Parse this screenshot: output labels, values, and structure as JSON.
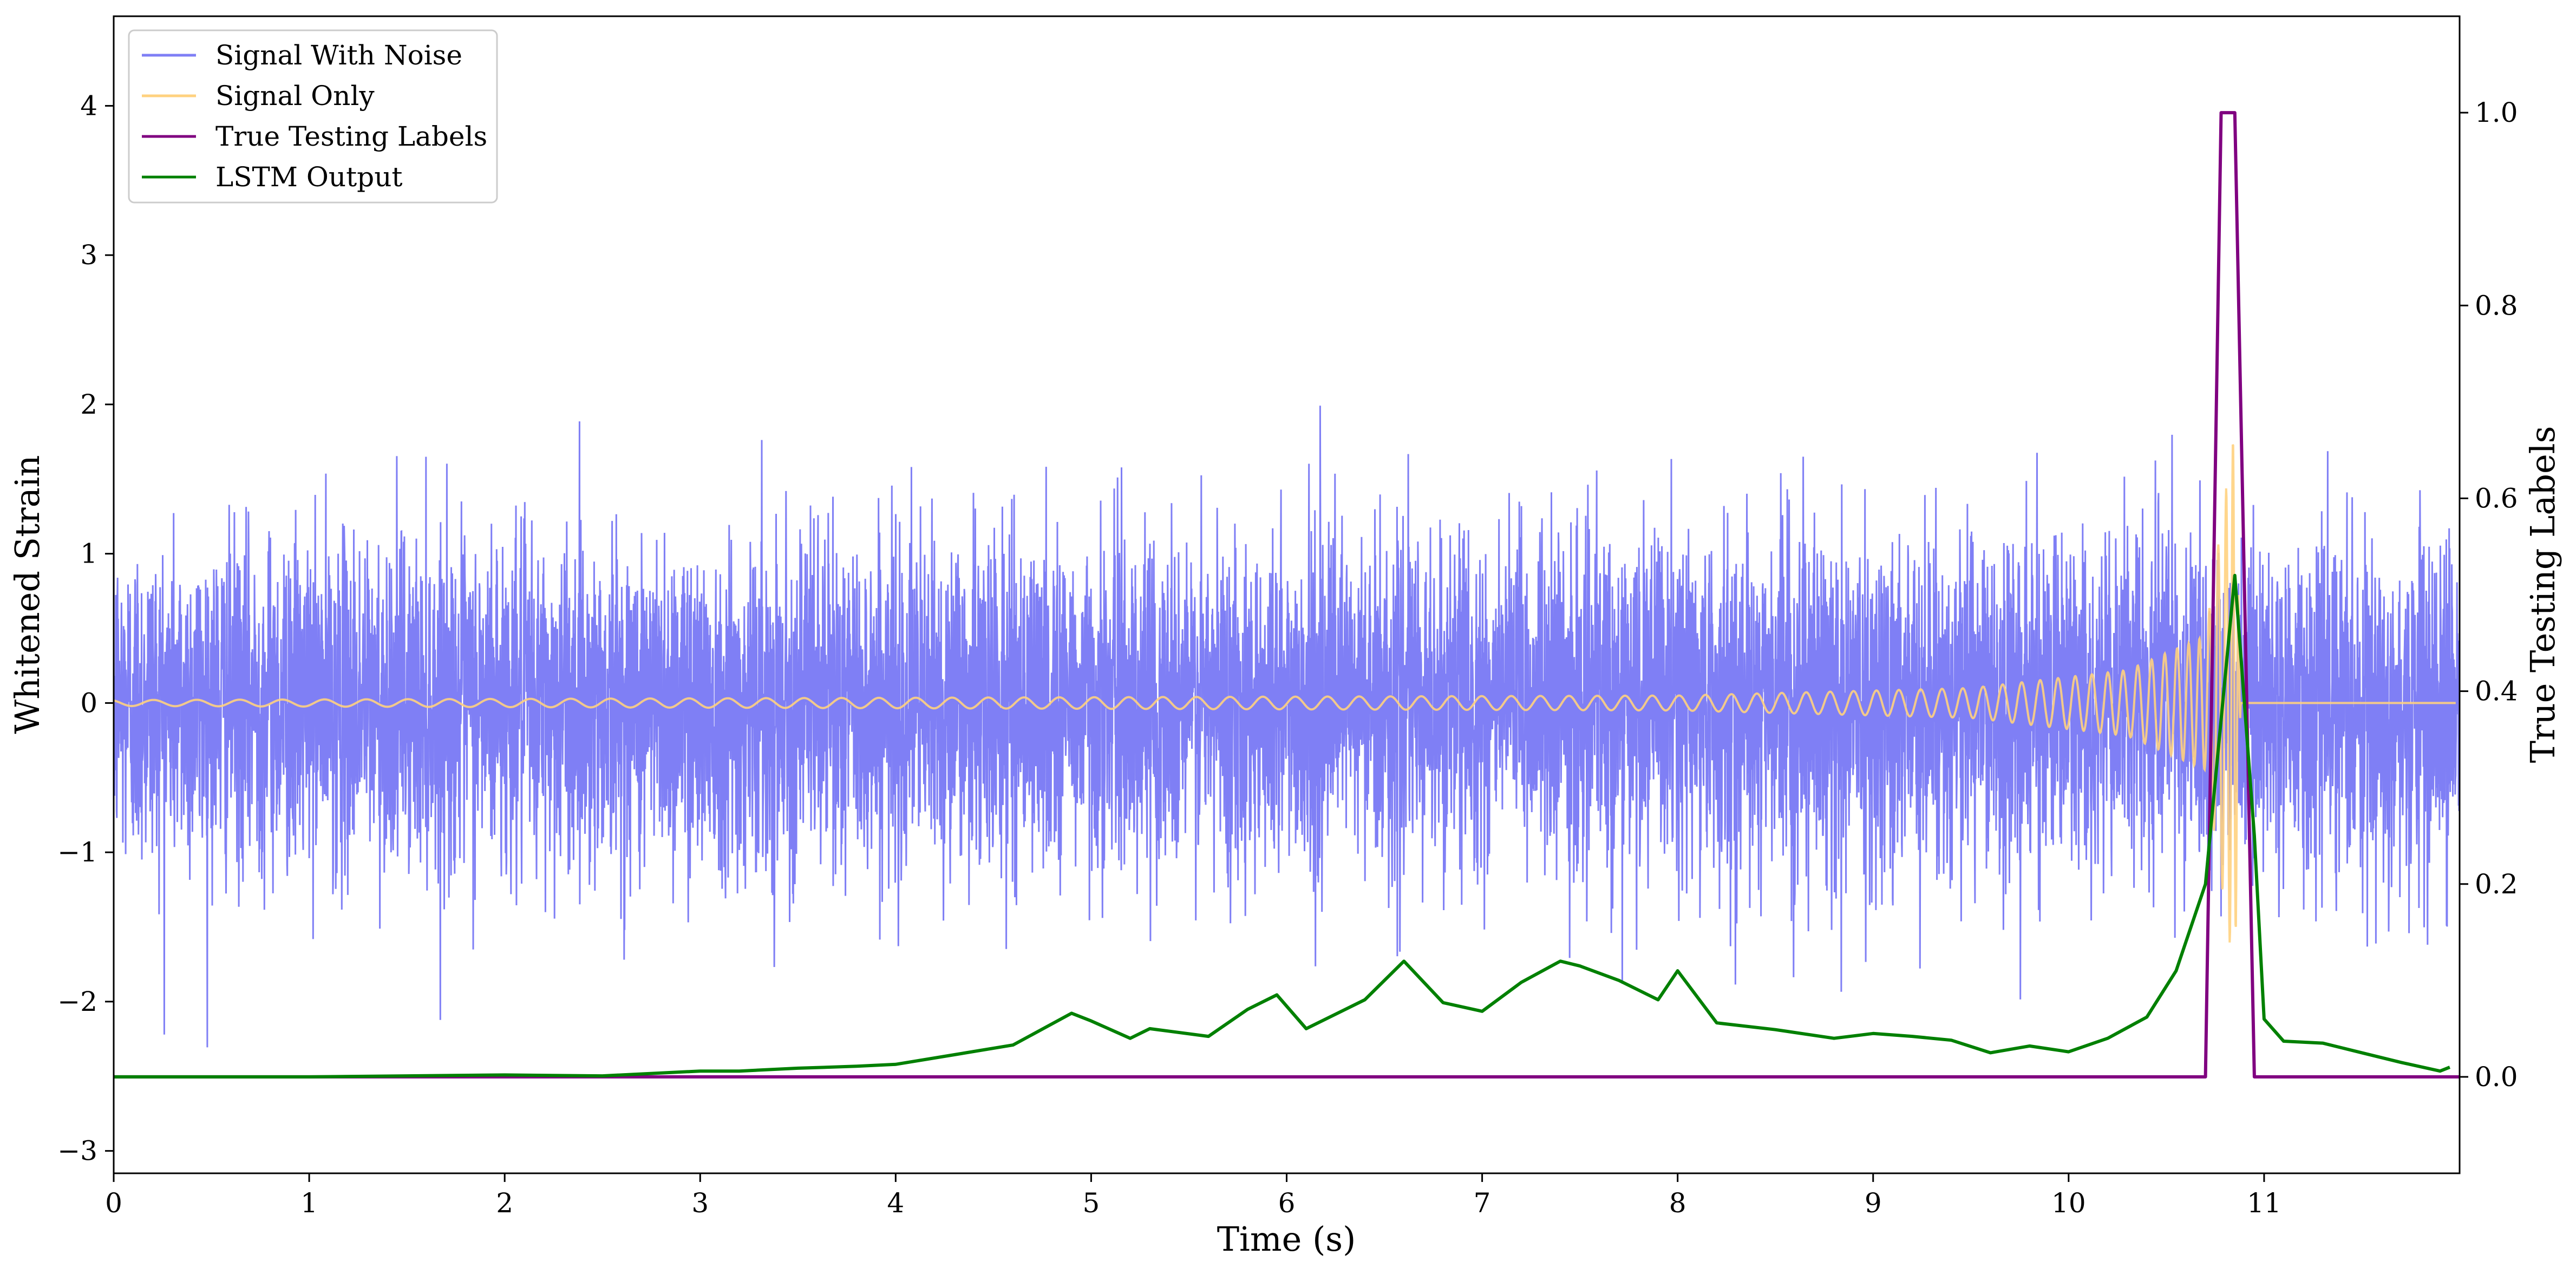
{
  "chart_data": {
    "type": "line",
    "title": "",
    "xlabel": "Time (s)",
    "ylabel": "Whitened Strain",
    "ylabel_right": "True Testing Labels",
    "xlim": [
      0,
      12
    ],
    "ylim": [
      -3.15,
      4.6
    ],
    "ylim_right": [
      -0.1,
      1.1
    ],
    "x_ticks": [
      0,
      1,
      2,
      3,
      4,
      5,
      6,
      7,
      8,
      9,
      10,
      11
    ],
    "x_tick_labels": [
      "0",
      "1",
      "2",
      "3",
      "4",
      "5",
      "6",
      "7",
      "8",
      "9",
      "10",
      "11"
    ],
    "y_ticks": [
      -3,
      -2,
      -1,
      0,
      1,
      2,
      3,
      4
    ],
    "y_tick_labels": [
      "−3",
      "−2",
      "−1",
      "0",
      "1",
      "2",
      "3",
      "4"
    ],
    "y_right_ticks": [
      0.0,
      0.2,
      0.4,
      0.6,
      0.8,
      1.0
    ],
    "y_right_tick_labels": [
      "0.0",
      "0.2",
      "0.4",
      "0.6",
      "0.8",
      "1.0"
    ],
    "grid": false,
    "legend_position": "top-left",
    "series": [
      {
        "name": "Signal With Noise",
        "axis": "left",
        "color": "#7f7ff5",
        "style": "dense-noise",
        "noise_std": 0.55,
        "noise_max_abs": 2.4,
        "x_range": [
          0,
          12
        ]
      },
      {
        "name": "Signal Only",
        "axis": "left",
        "color": "#ffd27f",
        "style": "chirp",
        "x_range": [
          0,
          11.98
        ],
        "merger_time": 10.85,
        "peak_amplitude": 1.85,
        "amplitude_points": [
          [
            0,
            0.02
          ],
          [
            8,
            0.05
          ],
          [
            9.5,
            0.1
          ],
          [
            10.3,
            0.22
          ],
          [
            10.7,
            0.45
          ],
          [
            10.85,
            1.85
          ],
          [
            10.88,
            0
          ]
        ]
      },
      {
        "name": "True Testing Labels",
        "axis": "right",
        "color": "#800080",
        "x": [
          0,
          10.7,
          10.78,
          10.85,
          10.95,
          12
        ],
        "y": [
          0,
          0,
          1,
          1,
          0,
          0
        ]
      },
      {
        "name": "LSTM Output",
        "axis": "right",
        "color": "#008000",
        "x": [
          0,
          0.5,
          1.0,
          1.5,
          2.0,
          2.5,
          3.0,
          3.2,
          3.5,
          3.8,
          4.0,
          4.3,
          4.6,
          4.9,
          5.0,
          5.2,
          5.3,
          5.6,
          5.8,
          5.95,
          6.1,
          6.3,
          6.4,
          6.6,
          6.8,
          7.0,
          7.2,
          7.4,
          7.5,
          7.7,
          7.9,
          8.0,
          8.2,
          8.5,
          8.8,
          9.0,
          9.2,
          9.4,
          9.6,
          9.8,
          10.0,
          10.2,
          10.4,
          10.55,
          10.7,
          10.85,
          10.95,
          11.0,
          11.1,
          11.3,
          11.5,
          11.7,
          11.9,
          11.95
        ],
        "y": [
          0.0,
          0.0,
          0.0,
          0.001,
          0.002,
          0.001,
          0.006,
          0.006,
          0.009,
          0.011,
          0.013,
          0.023,
          0.033,
          0.066,
          0.058,
          0.04,
          0.05,
          0.042,
          0.07,
          0.085,
          0.05,
          0.07,
          0.08,
          0.12,
          0.077,
          0.068,
          0.098,
          0.12,
          0.115,
          0.1,
          0.08,
          0.11,
          0.056,
          0.049,
          0.04,
          0.045,
          0.042,
          0.038,
          0.025,
          0.032,
          0.026,
          0.04,
          0.062,
          0.11,
          0.2,
          0.52,
          0.25,
          0.06,
          0.037,
          0.035,
          0.025,
          0.015,
          0.006,
          0.01
        ]
      }
    ]
  }
}
